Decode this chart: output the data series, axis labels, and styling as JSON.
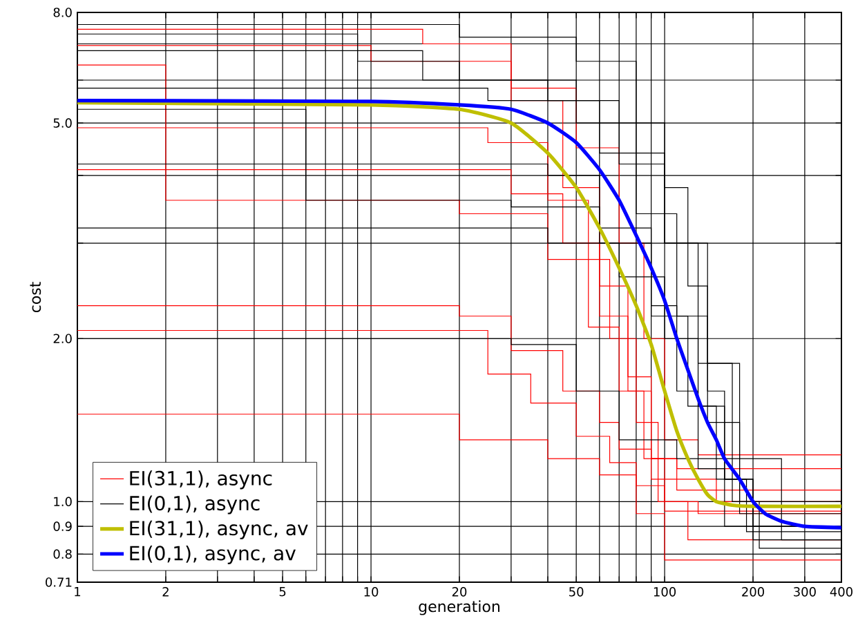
{
  "chart_data": {
    "type": "step",
    "xlabel": "generation",
    "ylabel": "cost",
    "log": "xy",
    "grid": true,
    "legend": "bottom left",
    "xlim": [
      1,
      400
    ],
    "ylim": [
      0.71,
      8.0
    ],
    "xticks": [
      1,
      2,
      {
        "value": 3,
        "label": null
      },
      {
        "value": 4,
        "label": null
      },
      5,
      {
        "value": 6,
        "label": null
      },
      {
        "value": 7,
        "label": null
      },
      {
        "value": 8,
        "label": null
      },
      {
        "value": 9,
        "label": null
      },
      10,
      20,
      {
        "value": 30,
        "label": null
      },
      {
        "value": 40,
        "label": null
      },
      50,
      {
        "value": 60,
        "label": null
      },
      {
        "value": 70,
        "label": null
      },
      {
        "value": 80,
        "label": null
      },
      {
        "value": 90,
        "label": null
      },
      100,
      200,
      300,
      400
    ],
    "yticks": [
      0.71,
      0.8,
      0.9,
      {
        "value": 1,
        "label": "1.0"
      },
      {
        "value": 2,
        "label": "2.0"
      },
      {
        "value": 3,
        "label": null
      },
      {
        "value": 4,
        "label": null
      },
      {
        "value": 5,
        "label": "5.0"
      },
      {
        "value": 6,
        "label": null
      },
      {
        "value": 7,
        "label": null
      },
      {
        "value": 8,
        "label": "8.0"
      }
    ],
    "series": [
      {
        "name": "EI(31,1), async",
        "color": "#ff0000",
        "x": [
          1,
          2,
          20,
          40,
          55,
          70,
          85,
          100,
          130,
          400
        ],
        "values": [
          6.4,
          3.6,
          3.4,
          2.8,
          2.1,
          1.6,
          1.2,
          1.0,
          0.95,
          0.95
        ]
      },
      {
        "color": "#ff0000",
        "x": [
          1,
          15,
          30,
          45,
          60,
          75,
          90,
          110,
          400
        ],
        "values": [
          7.45,
          7.0,
          5.5,
          3.8,
          2.5,
          1.7,
          1.2,
          1.05,
          1.05
        ]
      },
      {
        "color": "#ff0000",
        "x": [
          1,
          25,
          40,
          55,
          65,
          80,
          95,
          120,
          400
        ],
        "values": [
          4.9,
          4.6,
          3.6,
          2.8,
          2.0,
          1.4,
          1.0,
          0.85,
          0.85
        ]
      },
      {
        "color": "#ff0000",
        "x": [
          1,
          20,
          30,
          45,
          60,
          70,
          90,
          150,
          400
        ],
        "values": [
          2.3,
          2.2,
          1.9,
          1.6,
          1.4,
          1.25,
          1.1,
          1.0,
          1.0
        ]
      },
      {
        "color": "#ff0000",
        "x": [
          1,
          25,
          35,
          50,
          65,
          80,
          100,
          400
        ],
        "values": [
          2.07,
          1.72,
          1.52,
          1.32,
          1.18,
          1.07,
          0.96,
          0.96
        ]
      },
      {
        "color": "#ff0000",
        "x": [
          1,
          20,
          40,
          60,
          80,
          100,
          400
        ],
        "values": [
          1.45,
          1.3,
          1.2,
          1.12,
          0.95,
          0.78,
          0.78
        ]
      },
      {
        "color": "#ff0000",
        "x": [
          1,
          30,
          45,
          60,
          75,
          90,
          110,
          400
        ],
        "values": [
          4.1,
          3.7,
          3.0,
          2.2,
          1.6,
          1.2,
          1.15,
          1.15
        ]
      },
      {
        "color": "#ff0000",
        "x": [
          1,
          10,
          30,
          50,
          70,
          85,
          100,
          130,
          400
        ],
        "values": [
          6.95,
          6.5,
          5.8,
          4.5,
          3.0,
          2.0,
          1.3,
          1.22,
          1.22
        ]
      },
      {
        "name": "EI(0,1), async",
        "color": "#000000",
        "x": [
          1,
          20,
          50,
          80,
          100,
          120,
          140,
          160,
          200,
          400
        ],
        "values": [
          7.6,
          7.2,
          6.5,
          5.0,
          3.8,
          2.5,
          1.6,
          1.1,
          0.85,
          0.85
        ]
      },
      {
        "color": "#000000",
        "x": [
          1,
          6,
          30,
          60,
          90,
          110,
          130,
          160,
          400
        ],
        "values": [
          5.3,
          3.6,
          3.5,
          3.0,
          2.3,
          1.6,
          1.15,
          0.9,
          0.9
        ]
      },
      {
        "color": "#000000",
        "x": [
          1,
          9,
          20,
          50,
          80,
          110,
          140,
          180,
          210,
          400
        ],
        "values": [
          7.3,
          6.5,
          6.0,
          5.0,
          3.4,
          2.2,
          1.4,
          1.0,
          0.82,
          0.82
        ]
      },
      {
        "color": "#000000",
        "x": [
          1,
          40,
          60,
          90,
          120,
          150,
          190,
          400
        ],
        "values": [
          4.2,
          4.0,
          3.2,
          2.2,
          1.5,
          1.1,
          0.88,
          0.88
        ]
      },
      {
        "color": "#000000",
        "x": [
          1,
          30,
          50,
          70,
          110,
          160,
          250,
          400
        ],
        "values": [
          2.0,
          1.95,
          1.6,
          1.3,
          1.2,
          1.2,
          0.85,
          0.85
        ]
      },
      {
        "color": "#000000",
        "x": [
          1,
          40,
          70,
          100,
          130,
          160,
          200,
          400
        ],
        "values": [
          3.2,
          3.0,
          2.6,
          2.0,
          1.5,
          1.1,
          0.9,
          0.9
        ]
      },
      {
        "color": "#000000",
        "x": [
          1,
          15,
          40,
          70,
          100,
          130,
          170,
          400
        ],
        "values": [
          6.8,
          6.0,
          5.5,
          4.2,
          3.0,
          1.8,
          1.0,
          1.0
        ]
      },
      {
        "color": "#000000",
        "x": [
          1,
          25,
          60,
          100,
          140,
          180,
          400
        ],
        "values": [
          5.8,
          5.5,
          4.4,
          3.0,
          1.8,
          0.95,
          0.95
        ]
      },
      {
        "name": "EI(31,1), async, av",
        "type": "line",
        "color": "#bfbf00",
        "x": [
          1,
          10,
          20,
          30,
          40,
          50,
          60,
          70,
          80,
          90,
          100,
          110,
          120,
          130,
          140,
          150,
          170,
          200,
          400
        ],
        "values": [
          5.45,
          5.4,
          5.3,
          5.0,
          4.4,
          3.8,
          3.2,
          2.7,
          2.3,
          1.95,
          1.6,
          1.35,
          1.2,
          1.1,
          1.03,
          1.0,
          0.985,
          0.98,
          0.98
        ]
      },
      {
        "name": "EI(0,1), async, av",
        "type": "line",
        "color": "#0000ff",
        "x": [
          1,
          10,
          20,
          30,
          40,
          50,
          60,
          70,
          80,
          90,
          100,
          110,
          120,
          130,
          140,
          150,
          160,
          180,
          200,
          220,
          250,
          300,
          400
        ],
        "values": [
          5.5,
          5.48,
          5.4,
          5.3,
          5.0,
          4.6,
          4.1,
          3.6,
          3.1,
          2.7,
          2.35,
          2.0,
          1.75,
          1.55,
          1.4,
          1.3,
          1.2,
          1.1,
          1.0,
          0.95,
          0.92,
          0.9,
          0.895
        ]
      }
    ]
  }
}
